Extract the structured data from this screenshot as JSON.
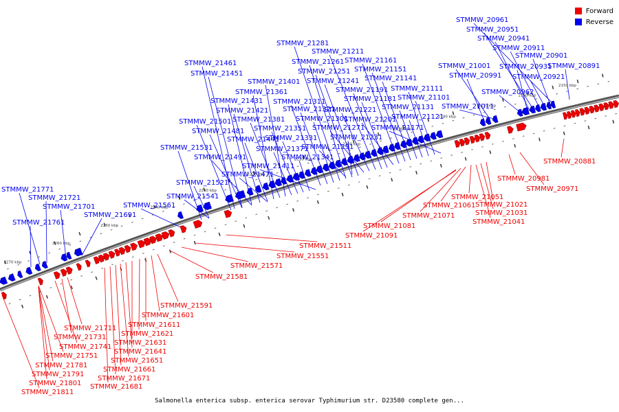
{
  "legend": {
    "forward": {
      "label": "Forward",
      "color": "#ee0000"
    },
    "reverse": {
      "label": "Reverse",
      "color": "#0000ee"
    }
  },
  "caption": "Salmonella enterica subsp. enterica serovar Typhimurium str. D23580 complete gen...",
  "kbp_ticks": [
    "2150 kbp",
    "2160 kbp",
    "2170 kbp",
    "2180 kbp",
    "2190 kbp",
    "2200 kbp",
    "2210 kbp",
    "2220 kbp",
    "2230 kbp",
    "2240 kbp",
    "2250 kbp",
    "2260 kbp",
    "2270 kbp"
  ],
  "reverse_labels": [
    "STMMW_20961",
    "STMMW_20951",
    "STMMW_20941",
    "STMMW_20911",
    "STMMW_20901",
    "STMMW_20931",
    "STMMW_21001",
    "STMMW_20891",
    "STMMW_20991",
    "STMMW_20921",
    "STMMW_20962",
    "STMMW_21011",
    "STMMW_21281",
    "STMMW_21211",
    "STMMW_21261",
    "STMMW_21161",
    "STMMW_21251",
    "STMMW_21151",
    "STMMW_21241",
    "STMMW_21141",
    "STMMW_21191",
    "STMMW_21111",
    "STMMW_21181",
    "STMMW_21101",
    "STMMW_21311",
    "STMMW_21221",
    "STMMW_21131",
    "STMMW_21321",
    "STMMW_21301",
    "STMMW_21201",
    "STMMW_21121",
    "STMMW_21271",
    "STMMW_21171",
    "STMMW_21231",
    "STMMW_21291",
    "STMMW_21461",
    "STMMW_21451",
    "STMMW_21401",
    "STMMW_21361",
    "STMMW_21431",
    "STMMW_21421",
    "STMMW_21381",
    "STMMW_21501",
    "STMMW_21481",
    "STMMW_21351",
    "STMMW_21441",
    "STMMW_21331",
    "STMMW_21531",
    "STMMW_21371",
    "STMMW_21341",
    "STMMW_21491",
    "STMMW_21411",
    "STMMW_21471",
    "STMMW_21521",
    "STMMW_21541",
    "STMMW_21561",
    "STMMW_21691",
    "STMMW_21771",
    "STMMW_21721",
    "STMMW_21701",
    "STMMW_21761"
  ],
  "forward_labels": [
    "STMMW_20881",
    "STMMW_20981",
    "STMMW_20971",
    "STMMW_21051",
    "STMMW_21061",
    "STMMW_21021",
    "STMMW_21071",
    "STMMW_21031",
    "STMMW_21041",
    "STMMW_21081",
    "STMMW_21091",
    "STMMW_21511",
    "STMMW_21551",
    "STMMW_21571",
    "STMMW_21581",
    "STMMW_21591",
    "STMMW_21601",
    "STMMW_21611",
    "STMMW_21711",
    "STMMW_21621",
    "STMMW_21731",
    "STMMW_21631",
    "STMMW_21741",
    "STMMW_21641",
    "STMMW_21751",
    "STMMW_21651",
    "STMMW_21661",
    "STMMW_21781",
    "STMMW_21791",
    "STMMW_21671",
    "STMMW_21801",
    "STMMW_21681",
    "STMMW_21811"
  ]
}
